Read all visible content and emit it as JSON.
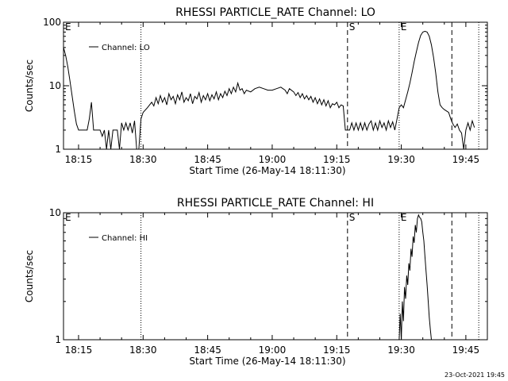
{
  "chart_data": [
    {
      "type": "line",
      "title": "RHESSI PARTICLE_RATE Channel: LO",
      "xlabel": "Start Time (26-May-14 18:11:30)",
      "ylabel": "Counts/sec",
      "y_scale": "log",
      "ylim": [
        1,
        100
      ],
      "y_ticks": [
        1,
        10,
        100
      ],
      "y_tick_labels": [
        "1",
        "10",
        "100"
      ],
      "xlim": [
        "18:11:30",
        "19:50:00"
      ],
      "x_ticks": [
        "18:15",
        "18:30",
        "18:45",
        "19:00",
        "19:15",
        "19:30",
        "19:45"
      ],
      "legend": {
        "position": "top-left",
        "label": "Channel: LO"
      },
      "markers": [
        {
          "time": "18:11:30",
          "label": "E",
          "style": "none"
        },
        {
          "time": "18:29:30",
          "label": "",
          "style": "dotted"
        },
        {
          "time": "19:17:30",
          "label": "S",
          "style": "dashed"
        },
        {
          "time": "19:29:30",
          "label": "E",
          "style": "dotted"
        },
        {
          "time": "19:41:45",
          "label": "",
          "style": "dashed"
        },
        {
          "time": "19:48:00",
          "label": "",
          "style": "dotted"
        }
      ],
      "series": [
        {
          "name": "Channel: LO",
          "points": [
            [
              "18:11:30",
              40
            ],
            [
              "18:12:00",
              30
            ],
            [
              "18:12:30",
              20
            ],
            [
              "18:13:00",
              12
            ],
            [
              "18:13:30",
              7
            ],
            [
              "18:14:00",
              4
            ],
            [
              "18:14:30",
              2.5
            ],
            [
              "18:15:00",
              2
            ],
            [
              "18:16:00",
              2
            ],
            [
              "18:17:00",
              2
            ],
            [
              "18:17:30",
              3
            ],
            [
              "18:18:00",
              5.5
            ],
            [
              "18:18:30",
              2
            ],
            [
              "18:19:00",
              2
            ],
            [
              "18:20:00",
              2
            ],
            [
              "18:20:30",
              1.6
            ],
            [
              "18:21:00",
              2
            ],
            [
              "18:21:30",
              1
            ],
            [
              "18:22:00",
              2
            ],
            [
              "18:22:30",
              1
            ],
            [
              "18:23:00",
              2
            ],
            [
              "18:24:00",
              2
            ],
            [
              "18:24:30",
              1
            ],
            [
              "18:25:00",
              2.6
            ],
            [
              "18:25:30",
              2
            ],
            [
              "18:26:00",
              2.6
            ],
            [
              "18:26:30",
              2
            ],
            [
              "18:27:00",
              2.6
            ],
            [
              "18:27:30",
              1.8
            ],
            [
              "18:28:00",
              2.8
            ],
            [
              "18:28:30",
              1
            ],
            [
              "18:29:00",
              1
            ],
            [
              "18:29:30",
              3
            ],
            [
              "18:30:00",
              3.8
            ],
            [
              "18:31:00",
              4.5
            ],
            [
              "18:32:00",
              5.5
            ],
            [
              "18:32:30",
              4.8
            ],
            [
              "18:33:00",
              6.5
            ],
            [
              "18:33:30",
              5.2
            ],
            [
              "18:34:00",
              7
            ],
            [
              "18:34:30",
              5.5
            ],
            [
              "18:35:00",
              6.5
            ],
            [
              "18:35:30",
              5
            ],
            [
              "18:36:00",
              7.5
            ],
            [
              "18:36:30",
              6
            ],
            [
              "18:37:00",
              6.8
            ],
            [
              "18:37:30",
              5.2
            ],
            [
              "18:38:00",
              7.2
            ],
            [
              "18:38:30",
              6
            ],
            [
              "18:39:00",
              8
            ],
            [
              "18:39:30",
              5.5
            ],
            [
              "18:40:00",
              6.5
            ],
            [
              "18:40:30",
              5.8
            ],
            [
              "18:41:00",
              7.5
            ],
            [
              "18:41:30",
              5.2
            ],
            [
              "18:42:00",
              6.8
            ],
            [
              "18:42:30",
              6.2
            ],
            [
              "18:43:00",
              7.8
            ],
            [
              "18:43:30",
              5.5
            ],
            [
              "18:44:00",
              7
            ],
            [
              "18:44:30",
              6
            ],
            [
              "18:45:00",
              7.5
            ],
            [
              "18:45:30",
              5.8
            ],
            [
              "18:46:00",
              7.2
            ],
            [
              "18:46:30",
              6.2
            ],
            [
              "18:47:00",
              8
            ],
            [
              "18:47:30",
              6
            ],
            [
              "18:48:00",
              7.5
            ],
            [
              "18:48:30",
              6.5
            ],
            [
              "18:49:00",
              8.2
            ],
            [
              "18:49:30",
              7
            ],
            [
              "18:50:00",
              9
            ],
            [
              "18:50:30",
              7.5
            ],
            [
              "18:51:00",
              9.5
            ],
            [
              "18:51:30",
              8
            ],
            [
              "18:52:00",
              11
            ],
            [
              "18:52:30",
              8.5
            ],
            [
              "18:53:00",
              9
            ],
            [
              "18:53:30",
              7.5
            ],
            [
              "18:54:00",
              8.5
            ],
            [
              "18:55:00",
              8
            ],
            [
              "18:56:00",
              9
            ],
            [
              "18:57:00",
              9.5
            ],
            [
              "18:58:00",
              9
            ],
            [
              "18:59:00",
              8.5
            ],
            [
              "19:00:00",
              8.5
            ],
            [
              "19:01:00",
              9
            ],
            [
              "19:02:00",
              9.5
            ],
            [
              "19:03:00",
              8.5
            ],
            [
              "19:03:30",
              7.5
            ],
            [
              "19:04:00",
              9
            ],
            [
              "19:05:00",
              8
            ],
            [
              "19:05:30",
              7
            ],
            [
              "19:06:00",
              7.8
            ],
            [
              "19:06:30",
              6.5
            ],
            [
              "19:07:00",
              7.5
            ],
            [
              "19:07:30",
              6.2
            ],
            [
              "19:08:00",
              7
            ],
            [
              "19:08:30",
              6
            ],
            [
              "19:09:00",
              6.8
            ],
            [
              "19:09:30",
              5.5
            ],
            [
              "19:10:00",
              6.5
            ],
            [
              "19:10:30",
              5.2
            ],
            [
              "19:11:00",
              6.2
            ],
            [
              "19:11:30",
              5
            ],
            [
              "19:12:00",
              6
            ],
            [
              "19:12:30",
              4.8
            ],
            [
              "19:13:00",
              5.8
            ],
            [
              "19:13:30",
              4.5
            ],
            [
              "19:14:00",
              5.2
            ],
            [
              "19:14:30",
              5
            ],
            [
              "19:15:00",
              5.5
            ],
            [
              "19:15:30",
              4.5
            ],
            [
              "19:16:00",
              5
            ],
            [
              "19:16:30",
              4.8
            ],
            [
              "19:17:00",
              2
            ],
            [
              "19:18:00",
              2
            ],
            [
              "19:18:30",
              2.6
            ],
            [
              "19:19:00",
              2
            ],
            [
              "19:19:30",
              2.6
            ],
            [
              "19:20:00",
              2
            ],
            [
              "19:20:30",
              2.6
            ],
            [
              "19:21:00",
              2
            ],
            [
              "19:21:30",
              2.6
            ],
            [
              "19:22:00",
              2
            ],
            [
              "19:22:30",
              2.5
            ],
            [
              "19:23:00",
              2.8
            ],
            [
              "19:23:30",
              2
            ],
            [
              "19:24:00",
              2.6
            ],
            [
              "19:24:30",
              2
            ],
            [
              "19:25:00",
              2.8
            ],
            [
              "19:25:30",
              2.2
            ],
            [
              "19:26:00",
              2.6
            ],
            [
              "19:26:30",
              2
            ],
            [
              "19:27:00",
              2.8
            ],
            [
              "19:27:30",
              2.2
            ],
            [
              "19:28:00",
              2.7
            ],
            [
              "19:28:30",
              2
            ],
            [
              "19:29:00",
              3
            ],
            [
              "19:29:30",
              4.5
            ],
            [
              "19:30:00",
              5
            ],
            [
              "19:30:30",
              4.5
            ],
            [
              "19:31:00",
              6
            ],
            [
              "19:31:30",
              8
            ],
            [
              "19:32:00",
              11
            ],
            [
              "19:32:30",
              16
            ],
            [
              "19:33:00",
              24
            ],
            [
              "19:33:30",
              34
            ],
            [
              "19:34:00",
              48
            ],
            [
              "19:34:30",
              62
            ],
            [
              "19:35:00",
              70
            ],
            [
              "19:35:30",
              72
            ],
            [
              "19:36:00",
              70
            ],
            [
              "19:36:30",
              60
            ],
            [
              "19:37:00",
              44
            ],
            [
              "19:37:30",
              28
            ],
            [
              "19:38:00",
              16
            ],
            [
              "19:38:30",
              8
            ],
            [
              "19:39:00",
              5
            ],
            [
              "19:39:30",
              4.5
            ],
            [
              "19:40:00",
              4.2
            ],
            [
              "19:40:30",
              4
            ],
            [
              "19:41:00",
              3.8
            ],
            [
              "19:41:30",
              3
            ],
            [
              "19:42:00",
              2.5
            ],
            [
              "19:42:30",
              2.2
            ],
            [
              "19:43:00",
              2.5
            ],
            [
              "19:43:30",
              2
            ],
            [
              "19:44:00",
              1.8
            ],
            [
              "19:44:30",
              1
            ],
            [
              "19:45:00",
              2
            ],
            [
              "19:45:30",
              2.6
            ],
            [
              "19:46:00",
              2
            ],
            [
              "19:46:30",
              2.8
            ],
            [
              "19:47:00",
              2.2
            ]
          ]
        }
      ]
    },
    {
      "type": "line",
      "title": "RHESSI PARTICLE_RATE Channel: HI",
      "xlabel": "Start Time (26-May-14 18:11:30)",
      "ylabel": "Counts/sec",
      "y_scale": "log",
      "ylim": [
        1,
        10
      ],
      "y_ticks": [
        1,
        10
      ],
      "y_tick_labels": [
        "1",
        "10"
      ],
      "xlim": [
        "18:11:30",
        "19:50:00"
      ],
      "x_ticks": [
        "18:15",
        "18:30",
        "18:45",
        "19:00",
        "19:15",
        "19:30",
        "19:45"
      ],
      "legend": {
        "position": "top-left",
        "label": "Channel: HI"
      },
      "markers": [
        {
          "time": "18:11:30",
          "label": "E",
          "style": "none"
        },
        {
          "time": "18:29:30",
          "label": "",
          "style": "dotted"
        },
        {
          "time": "19:17:30",
          "label": "S",
          "style": "dashed"
        },
        {
          "time": "19:29:30",
          "label": "E",
          "style": "dotted"
        },
        {
          "time": "19:41:45",
          "label": "",
          "style": "dashed"
        },
        {
          "time": "19:48:00",
          "label": "",
          "style": "dotted"
        }
      ],
      "series": [
        {
          "name": "Channel: HI",
          "points": [
            [
              "19:29:30",
              1
            ],
            [
              "19:29:45",
              1.6
            ],
            [
              "19:30:00",
              1
            ],
            [
              "19:30:15",
              2
            ],
            [
              "19:30:30",
              1.4
            ],
            [
              "19:30:45",
              2.6
            ],
            [
              "19:31:00",
              2.1
            ],
            [
              "19:31:15",
              3.2
            ],
            [
              "19:31:30",
              2.7
            ],
            [
              "19:31:45",
              4
            ],
            [
              "19:32:00",
              3.5
            ],
            [
              "19:32:15",
              5.2
            ],
            [
              "19:32:30",
              4.5
            ],
            [
              "19:32:45",
              6.5
            ],
            [
              "19:33:00",
              5.8
            ],
            [
              "19:33:15",
              8
            ],
            [
              "19:33:30",
              7
            ],
            [
              "19:33:45",
              9
            ],
            [
              "19:34:00",
              9.6
            ],
            [
              "19:34:15",
              9.2
            ],
            [
              "19:34:30",
              9
            ],
            [
              "19:34:45",
              8.5
            ],
            [
              "19:35:00",
              7
            ],
            [
              "19:35:15",
              6
            ],
            [
              "19:35:30",
              4.5
            ],
            [
              "19:35:45",
              3.5
            ],
            [
              "19:36:00",
              2.7
            ],
            [
              "19:36:15",
              2
            ],
            [
              "19:36:30",
              1.5
            ],
            [
              "19:36:45",
              1.2
            ],
            [
              "19:37:00",
              1
            ]
          ]
        }
      ]
    }
  ],
  "footer": {
    "timestamp": "23-Oct-2021 19:45"
  }
}
